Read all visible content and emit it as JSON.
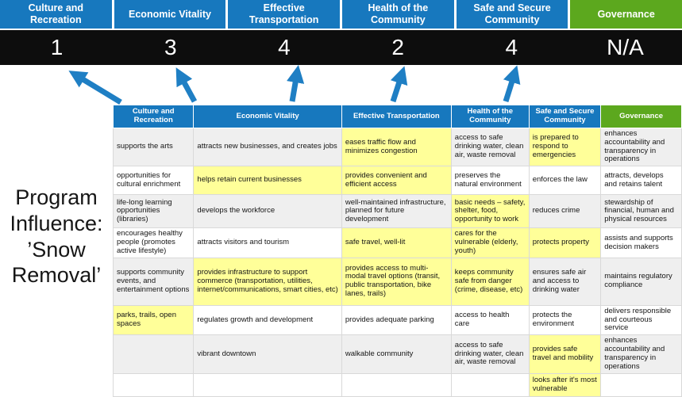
{
  "title": "Program Influence: ’Snow Removal’",
  "colors": {
    "pillar_blue": "#1778BE",
    "pillar_green": "#5CA81E",
    "highlight": "#FFFF99",
    "band_gray": "#EFEFEF",
    "arrow_blue": "#1F7FC4",
    "score_bar": "#0D0D0D",
    "score_text": "#FFFFFF"
  },
  "scoreboard": [
    {
      "label": "Culture and Recreation",
      "score": "1",
      "theme": "blue"
    },
    {
      "label": "Economic Vitality",
      "score": "3",
      "theme": "blue"
    },
    {
      "label": "Effective Transportation",
      "score": "4",
      "theme": "blue"
    },
    {
      "label": "Health of the Community",
      "score": "2",
      "theme": "blue"
    },
    {
      "label": "Safe and Secure Community",
      "score": "4",
      "theme": "blue"
    },
    {
      "label": "Governance",
      "score": "N/A",
      "theme": "green"
    }
  ],
  "matrix": {
    "headers": [
      {
        "label": "Culture and Recreation",
        "theme": "blue"
      },
      {
        "label": "Economic Vitality",
        "theme": "blue"
      },
      {
        "label": "Effective Transportation",
        "theme": "blue"
      },
      {
        "label": "Health of the Community",
        "theme": "blue"
      },
      {
        "label": "Safe and Secure Community",
        "theme": "blue"
      },
      {
        "label": "Governance",
        "theme": "green"
      }
    ],
    "rows": [
      [
        {
          "text": "supports the arts",
          "hl": false
        },
        {
          "text": "attracts new businesses, and creates jobs",
          "hl": false
        },
        {
          "text": "eases traffic flow and minimizes congestion",
          "hl": true
        },
        {
          "text": "access to safe drinking water, clean air, waste removal",
          "hl": false
        },
        {
          "text": "is prepared to respond to emergencies",
          "hl": true
        },
        {
          "text": "enhances accountability and transparency in operations",
          "hl": false
        }
      ],
      [
        {
          "text": "opportunities for cultural enrichment",
          "hl": false
        },
        {
          "text": "helps retain current businesses",
          "hl": true
        },
        {
          "text": "provides convenient and efficient access",
          "hl": true
        },
        {
          "text": "preserves the natural environment",
          "hl": false
        },
        {
          "text": "enforces the law",
          "hl": false
        },
        {
          "text": "attracts, develops and retains talent",
          "hl": false
        }
      ],
      [
        {
          "text": "life-long learning opportunities (libraries)",
          "hl": false
        },
        {
          "text": "develops the workforce",
          "hl": false
        },
        {
          "text": "well-maintained infrastructure, planned for future development",
          "hl": false
        },
        {
          "text": "basic needs – safety, shelter, food, opportunity to work",
          "hl": true
        },
        {
          "text": "reduces crime",
          "hl": false
        },
        {
          "text": "stewardship of financial, human and physical resources",
          "hl": false
        }
      ],
      [
        {
          "text": "encourages healthy people (promotes active lifestyle)",
          "hl": false
        },
        {
          "text": "attracts visitors and tourism",
          "hl": false
        },
        {
          "text": "safe travel, well-lit",
          "hl": true
        },
        {
          "text": "cares for the vulnerable (elderly, youth)",
          "hl": true
        },
        {
          "text": "protects property",
          "hl": true
        },
        {
          "text": "assists and supports decision makers",
          "hl": false
        }
      ],
      [
        {
          "text": "supports community events, and entertainment options",
          "hl": false
        },
        {
          "text": "provides infrastructure to support commerce (transportation, utilities, internet/communications, smart cities, etc)",
          "hl": true
        },
        {
          "text": "provides access to multi-modal travel options (transit, public transportation, bike lanes, trails)",
          "hl": true
        },
        {
          "text": "keeps community safe from danger (crime, disease, etc)",
          "hl": true
        },
        {
          "text": "ensures safe air and access to drinking water",
          "hl": false
        },
        {
          "text": "maintains regulatory compliance",
          "hl": false
        }
      ],
      [
        {
          "text": "parks, trails, open spaces",
          "hl": true
        },
        {
          "text": "regulates growth and development",
          "hl": false
        },
        {
          "text": "provides adequate parking",
          "hl": false
        },
        {
          "text": "access to health care",
          "hl": false
        },
        {
          "text": "protects the environment",
          "hl": false
        },
        {
          "text": "delivers responsible and courteous service",
          "hl": false
        }
      ],
      [
        {
          "text": "",
          "hl": false
        },
        {
          "text": "vibrant downtown",
          "hl": false
        },
        {
          "text": "walkable community",
          "hl": false
        },
        {
          "text": "access to safe drinking water, clean air, waste removal",
          "hl": false
        },
        {
          "text": "provides safe travel and mobility",
          "hl": true
        },
        {
          "text": "enhances accountability and transparency in operations",
          "hl": false
        }
      ],
      [
        {
          "text": "",
          "hl": false
        },
        {
          "text": "",
          "hl": false
        },
        {
          "text": "",
          "hl": false
        },
        {
          "text": "",
          "hl": false
        },
        {
          "text": "looks after it's most vulnerable",
          "hl": true
        },
        {
          "text": "",
          "hl": false
        }
      ]
    ]
  }
}
